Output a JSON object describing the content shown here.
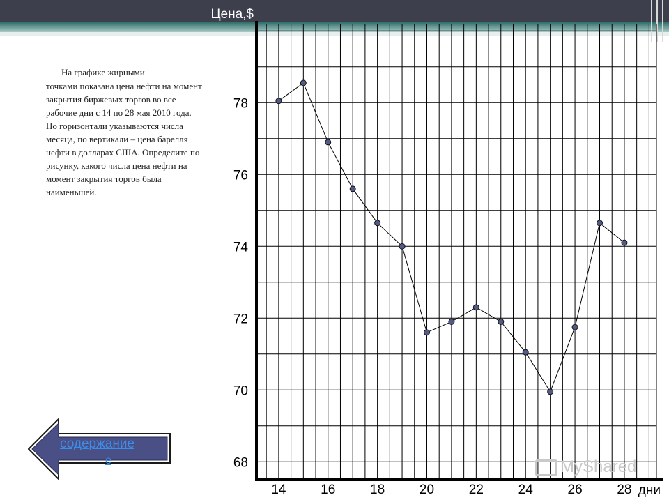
{
  "description": {
    "line1": "На графике жирными",
    "rest": "точками показана цена нефти на момент закрытия биржевых торгов во все рабочие дни с 14 по 28 мая 2010 года. По горизонтали указываются числа месяца, по вертикали – цена барелля нефти в долларах США. Определите по рисунку, какого числа цена нефти на момент закрытия торгов была наименьшей."
  },
  "nav_button": {
    "label": "содержание",
    "label_tail": "е"
  },
  "watermark": {
    "text": "MyShared"
  },
  "colors": {
    "topbar": "#3d3f4c",
    "accent": "#2f6f6a",
    "point_fill": "#545a86",
    "line": "#000000",
    "link": "#3b8de8"
  },
  "chart_data": {
    "type": "line",
    "ylabel": "Цена,$",
    "xlabel": "дни",
    "x_ticks": [
      14,
      16,
      18,
      20,
      22,
      24,
      26,
      28
    ],
    "y_ticks": [
      68,
      70,
      72,
      74,
      76,
      78
    ],
    "xlim": [
      13.1,
      29.3
    ],
    "ylim": [
      67.5,
      80.2
    ],
    "grid": true,
    "points": [
      {
        "x": 14,
        "y": 78.05
      },
      {
        "x": 15,
        "y": 78.55
      },
      {
        "x": 16,
        "y": 76.9
      },
      {
        "x": 17,
        "y": 75.6
      },
      {
        "x": 18,
        "y": 74.65
      },
      {
        "x": 19,
        "y": 74.0
      },
      {
        "x": 20,
        "y": 71.6
      },
      {
        "x": 21,
        "y": 71.9
      },
      {
        "x": 22,
        "y": 72.3
      },
      {
        "x": 23,
        "y": 71.9
      },
      {
        "x": 24,
        "y": 71.05
      },
      {
        "x": 25,
        "y": 69.95
      },
      {
        "x": 26,
        "y": 71.75
      },
      {
        "x": 27,
        "y": 74.65
      },
      {
        "x": 28,
        "y": 74.1
      }
    ]
  }
}
